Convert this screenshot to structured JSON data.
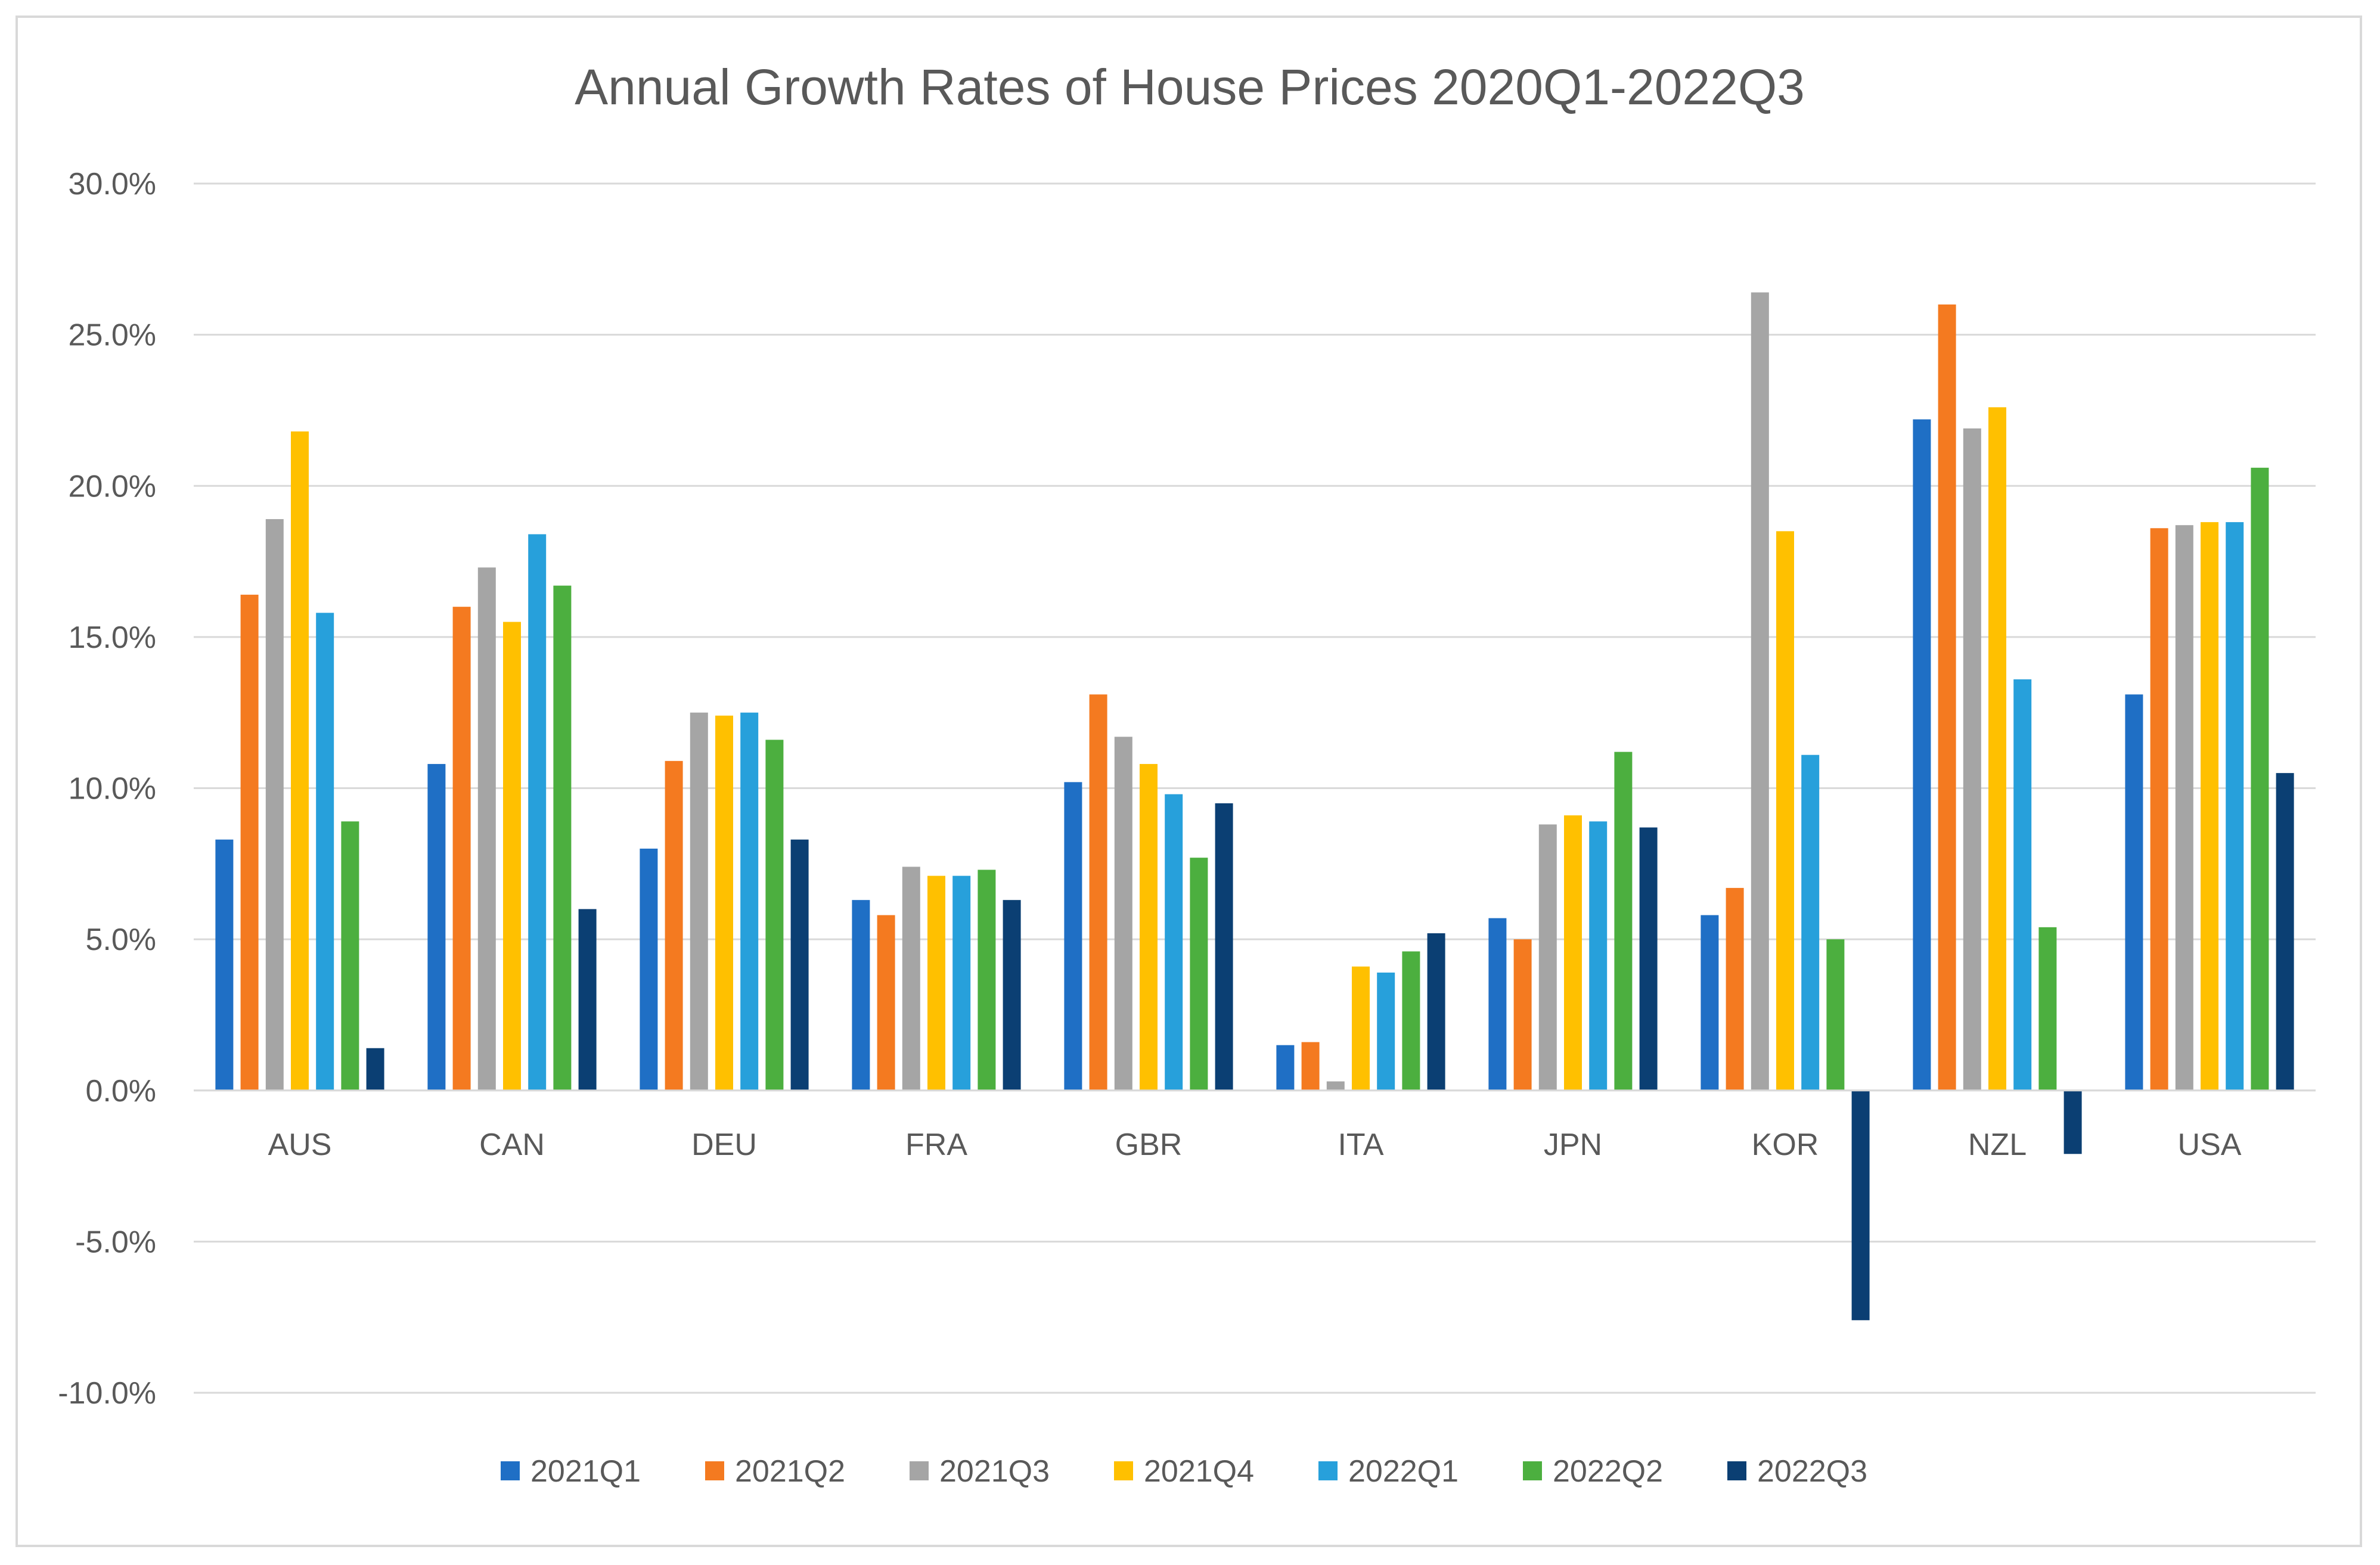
{
  "chart_data": {
    "type": "bar",
    "title": "Annual Growth Rates of House Prices 2020Q1-2022Q3",
    "xlabel": "",
    "ylabel": "",
    "ylim": [
      -0.1,
      0.3
    ],
    "y_ticks": [
      -0.1,
      -0.05,
      0.0,
      0.05,
      0.1,
      0.15,
      0.2,
      0.25,
      0.3
    ],
    "y_tick_labels": [
      "-10.0%",
      "-5.0%",
      "0.0%",
      "5.0%",
      "10.0%",
      "15.0%",
      "20.0%",
      "25.0%",
      "30.0%"
    ],
    "grid": true,
    "legend_position": "bottom",
    "categories": [
      "AUS",
      "CAN",
      "DEU",
      "FRA",
      "GBR",
      "ITA",
      "JPN",
      "KOR",
      "NZL",
      "USA"
    ],
    "series": [
      {
        "name": "2021Q1",
        "color": "#1f6fc5",
        "values": [
          0.083,
          0.108,
          0.08,
          0.063,
          0.102,
          0.015,
          0.057,
          0.058,
          0.222,
          0.131
        ]
      },
      {
        "name": "2021Q2",
        "color": "#f47a20",
        "values": [
          0.164,
          0.16,
          0.109,
          0.058,
          0.131,
          0.016,
          0.05,
          0.067,
          0.26,
          0.186
        ]
      },
      {
        "name": "2021Q3",
        "color": "#a5a5a5",
        "values": [
          0.189,
          0.173,
          0.125,
          0.074,
          0.117,
          0.003,
          0.088,
          0.264,
          0.219,
          0.187
        ]
      },
      {
        "name": "2021Q4",
        "color": "#ffc000",
        "values": [
          0.218,
          0.155,
          0.124,
          0.071,
          0.108,
          0.041,
          0.091,
          0.185,
          0.226,
          0.188
        ]
      },
      {
        "name": "2022Q1",
        "color": "#27a0db",
        "values": [
          0.158,
          0.184,
          0.125,
          0.071,
          0.098,
          0.039,
          0.089,
          0.111,
          0.136,
          0.188
        ]
      },
      {
        "name": "2022Q2",
        "color": "#4caf3f",
        "values": [
          0.089,
          0.167,
          0.116,
          0.073,
          0.077,
          0.046,
          0.112,
          0.05,
          0.054,
          0.206
        ]
      },
      {
        "name": "2022Q3",
        "color": "#0b3f73",
        "values": [
          0.014,
          0.06,
          0.083,
          0.063,
          0.095,
          0.052,
          0.087,
          -0.076,
          -0.021,
          0.105
        ]
      }
    ]
  }
}
